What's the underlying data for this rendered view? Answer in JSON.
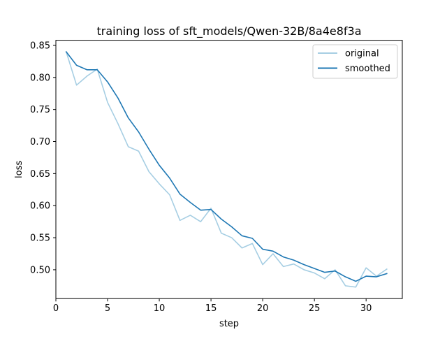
{
  "chart_data": {
    "type": "line",
    "title": "training loss of sft_models/Qwen-32B/8a4e8f3a",
    "xlabel": "step",
    "ylabel": "loss",
    "xlim": [
      0,
      33.5
    ],
    "ylim": [
      0.455,
      0.858
    ],
    "xticks": [
      0,
      5,
      10,
      15,
      20,
      25,
      30
    ],
    "yticks": [
      0.5,
      0.55,
      0.6,
      0.65,
      0.7,
      0.75,
      0.8,
      0.85
    ],
    "grid": false,
    "legend_position": "top-right",
    "x": [
      1,
      2,
      3,
      4,
      5,
      6,
      7,
      8,
      9,
      10,
      11,
      12,
      13,
      14,
      15,
      16,
      17,
      18,
      19,
      20,
      21,
      22,
      23,
      24,
      25,
      26,
      27,
      28,
      29,
      30,
      31,
      32
    ],
    "series": [
      {
        "name": "original",
        "color": "#a6cee3",
        "values": [
          0.84,
          0.788,
          0.802,
          0.813,
          0.761,
          0.728,
          0.692,
          0.685,
          0.653,
          0.634,
          0.617,
          0.577,
          0.585,
          0.575,
          0.596,
          0.557,
          0.55,
          0.534,
          0.541,
          0.508,
          0.525,
          0.505,
          0.509,
          0.5,
          0.495,
          0.486,
          0.5,
          0.475,
          0.473,
          0.503,
          0.49,
          0.501
        ]
      },
      {
        "name": "smoothed",
        "color": "#1f78b4",
        "values": [
          0.84,
          0.819,
          0.812,
          0.812,
          0.793,
          0.768,
          0.737,
          0.715,
          0.688,
          0.663,
          0.643,
          0.618,
          0.605,
          0.593,
          0.594,
          0.579,
          0.567,
          0.553,
          0.549,
          0.532,
          0.529,
          0.52,
          0.515,
          0.508,
          0.502,
          0.496,
          0.498,
          0.489,
          0.482,
          0.49,
          0.489,
          0.494
        ]
      }
    ]
  }
}
